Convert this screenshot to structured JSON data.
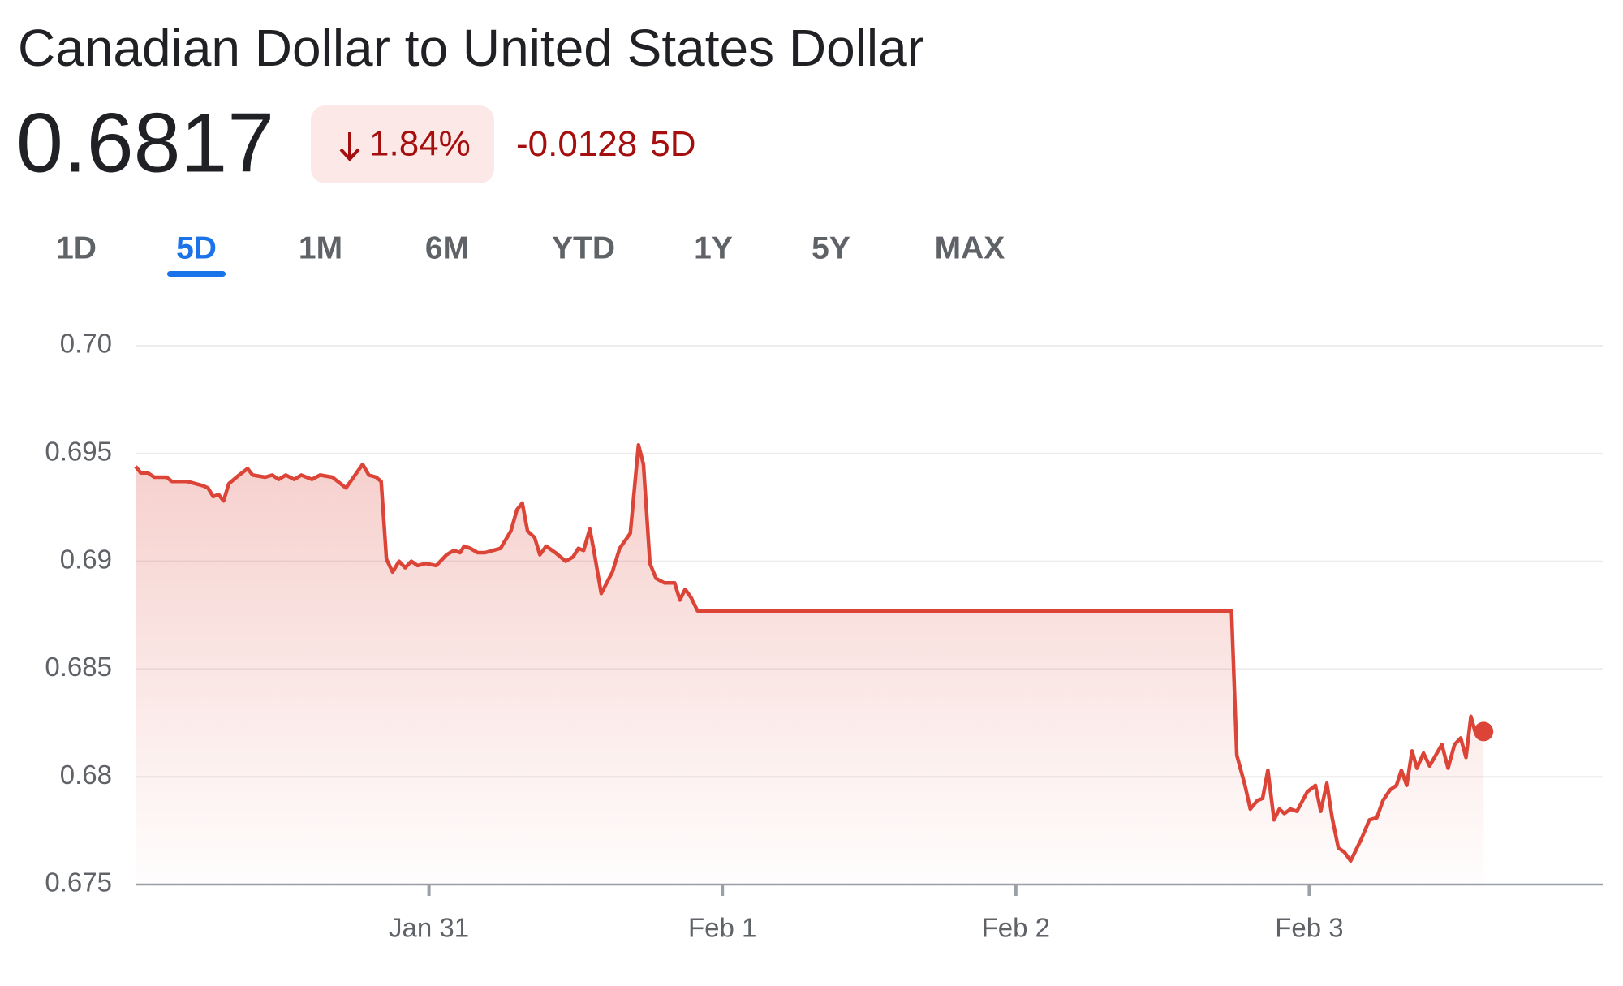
{
  "header": {
    "title": "Canadian Dollar to United States Dollar",
    "price": "0.6817",
    "change_percent": "1.84%",
    "change_value": "-0.0128",
    "change_period": "5D"
  },
  "tabs": {
    "items": [
      "1D",
      "5D",
      "1M",
      "6M",
      "YTD",
      "1Y",
      "5Y",
      "MAX"
    ],
    "selected": 1
  },
  "chart_data": {
    "type": "line",
    "fill": true,
    "color": "#db4437",
    "grid": true,
    "xlim": [
      0,
      5
    ],
    "xticks": [
      {
        "value": 1,
        "label": "Jan 31"
      },
      {
        "value": 2,
        "label": "Feb 1"
      },
      {
        "value": 3,
        "label": "Feb 2"
      },
      {
        "value": 4,
        "label": "Feb 3"
      }
    ],
    "ylim": [
      0.675,
      0.7
    ],
    "yticks": [
      0.675,
      0.68,
      0.685,
      0.69,
      0.695,
      {
        "value": 0.7,
        "label": "0.70"
      }
    ],
    "x": [
      0,
      0.018,
      0.042,
      0.064,
      0.106,
      0.124,
      0.177,
      0.23,
      0.247,
      0.265,
      0.283,
      0.3,
      0.318,
      0.353,
      0.382,
      0.399,
      0.442,
      0.466,
      0.488,
      0.512,
      0.541,
      0.565,
      0.601,
      0.629,
      0.671,
      0.717,
      0.774,
      0.795,
      0.82,
      0.837,
      0.855,
      0.876,
      0.898,
      0.919,
      0.94,
      0.961,
      0.989,
      1.025,
      1.06,
      1.085,
      1.106,
      1.12,
      1.141,
      1.166,
      1.191,
      1.244,
      1.279,
      1.3,
      1.318,
      1.336,
      1.36,
      1.378,
      1.399,
      1.431,
      1.466,
      1.491,
      1.509,
      1.527,
      1.548,
      1.562,
      1.587,
      1.625,
      1.65,
      1.686,
      1.714,
      1.731,
      1.753,
      1.774,
      1.802,
      1.837,
      1.855,
      1.873,
      1.894,
      1.915,
      1.943,
      3.735,
      3.753,
      3.781,
      3.799,
      3.823,
      3.841,
      3.859,
      3.88,
      3.898,
      3.915,
      3.936,
      3.958,
      3.993,
      4.021,
      4.039,
      4.06,
      4.078,
      4.099,
      4.12,
      4.141,
      4.177,
      4.205,
      4.23,
      4.251,
      4.276,
      4.297,
      4.314,
      4.332,
      4.35,
      4.367,
      4.389,
      4.41,
      4.431,
      4.452,
      4.473,
      4.495,
      4.516,
      4.534,
      4.551,
      4.565,
      4.594
    ],
    "values": [
      0.6944,
      0.6941,
      0.6941,
      0.6939,
      0.6939,
      0.6937,
      0.6937,
      0.6935,
      0.6934,
      0.693,
      0.6931,
      0.6928,
      0.6936,
      0.694,
      0.6943,
      0.694,
      0.6939,
      0.694,
      0.6938,
      0.694,
      0.6938,
      0.694,
      0.6938,
      0.694,
      0.6939,
      0.6934,
      0.6945,
      0.694,
      0.6939,
      0.6937,
      0.6901,
      0.6895,
      0.69,
      0.6897,
      0.69,
      0.6898,
      0.6899,
      0.6898,
      0.6903,
      0.6905,
      0.6904,
      0.6907,
      0.6906,
      0.6904,
      0.6904,
      0.6906,
      0.6914,
      0.6924,
      0.6927,
      0.6914,
      0.6911,
      0.6903,
      0.6907,
      0.6904,
      0.69,
      0.6902,
      0.6906,
      0.6905,
      0.6915,
      0.6905,
      0.6885,
      0.6895,
      0.6906,
      0.6913,
      0.6954,
      0.6945,
      0.6899,
      0.6892,
      0.689,
      0.689,
      0.6882,
      0.6887,
      0.6883,
      0.6877,
      0.6877,
      0.6877,
      0.681,
      0.6796,
      0.6785,
      0.6789,
      0.679,
      0.6803,
      0.678,
      0.6785,
      0.6783,
      0.6785,
      0.6784,
      0.6793,
      0.6796,
      0.6784,
      0.6797,
      0.6781,
      0.6767,
      0.6765,
      0.6761,
      0.6771,
      0.678,
      0.6781,
      0.6789,
      0.6794,
      0.6796,
      0.6803,
      0.6796,
      0.6812,
      0.6804,
      0.6811,
      0.6805,
      0.681,
      0.6815,
      0.6804,
      0.6815,
      0.6818,
      0.6809,
      0.6828,
      0.6821,
      0.6821
    ]
  }
}
